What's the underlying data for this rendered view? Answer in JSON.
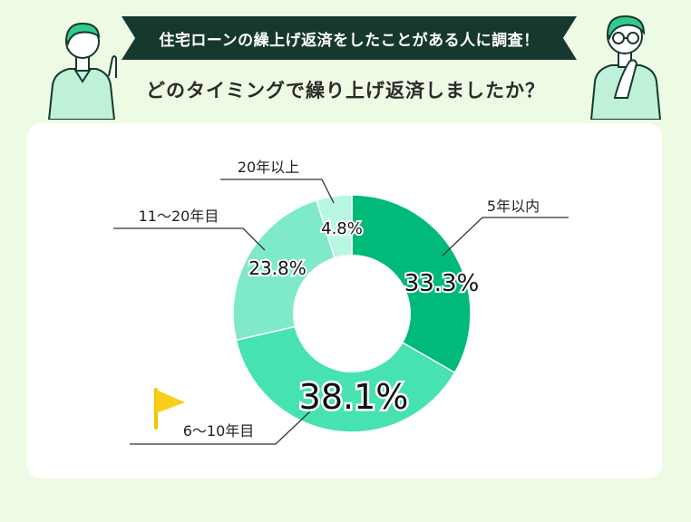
{
  "header": {
    "banner": "住宅ローンの繰上げ返済をしたことがある人に調査！",
    "question": "どのタイミングで繰り上げ返済しましたか？"
  },
  "chart_data": {
    "type": "pie",
    "donut": true,
    "categories": [
      "5年以内",
      "6〜10年目",
      "11〜20年目",
      "20年以上"
    ],
    "values": [
      33.3,
      38.1,
      23.8,
      4.8
    ],
    "value_labels": [
      "33.3%",
      "38.1%",
      "23.8%",
      "4.8%"
    ],
    "colors": [
      "#00ba7a",
      "#47e2b2",
      "#7feaca",
      "#b8f7e3"
    ],
    "highlight": "6〜10年目",
    "legend": "callout-lines"
  },
  "decor": {
    "flag_icon": "flag-icon",
    "left_person_icon": "person-pointing-icon",
    "right_person_icon": "person-thinking-icon"
  }
}
